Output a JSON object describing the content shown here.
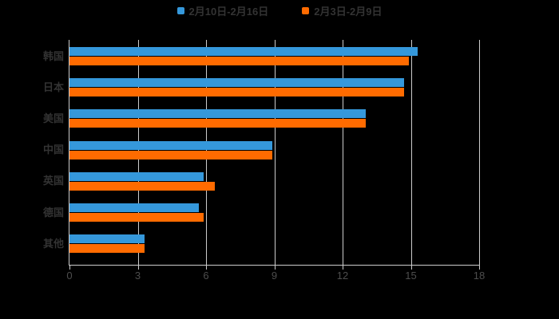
{
  "chart_data": {
    "type": "bar",
    "orientation": "horizontal",
    "title": "",
    "categories": [
      "韩国",
      "日本",
      "美国",
      "中国",
      "英国",
      "德国",
      "其他"
    ],
    "series": [
      {
        "name": "2月10日-2月16日",
        "color": "#3598db",
        "values": [
          15.3,
          14.7,
          13.0,
          8.9,
          5.9,
          5.7,
          3.3
        ]
      },
      {
        "name": "2月3日-2月9日",
        "color": "#ff6b00",
        "values": [
          14.9,
          14.7,
          13.0,
          8.9,
          6.4,
          5.9,
          3.3
        ]
      }
    ],
    "xlim": [
      0,
      18
    ],
    "xticks": [
      0,
      3,
      6,
      9,
      12,
      15,
      18
    ],
    "grid": "vertical",
    "legend_position": "top"
  },
  "colors": {
    "background": "#000000",
    "grid": "#cccccc",
    "axis": "#cccccc",
    "tick_label": "#4d4d4d",
    "category_label": "#333333",
    "legend_text": "#333333",
    "series_blue": "#3598db",
    "series_orange": "#ff6b00"
  }
}
